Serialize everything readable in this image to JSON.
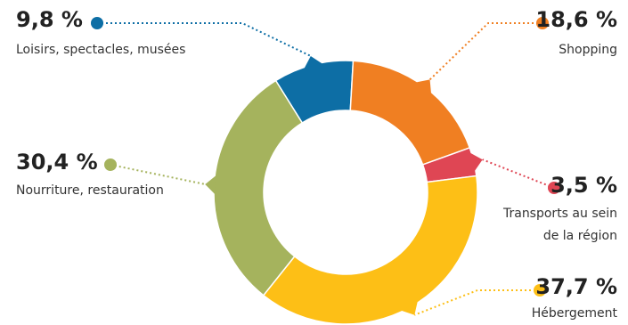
{
  "chart_data": {
    "type": "pie",
    "variant": "donut",
    "slices": [
      {
        "label": "Loisirs, spectacles, musées",
        "value": 9.8,
        "value_label": "9,8 %",
        "color": "#0d6ea5"
      },
      {
        "label": "Shopping",
        "value": 18.6,
        "value_label": "18,6 %",
        "color": "#f07f22"
      },
      {
        "label": "Transports au sein de la région",
        "label_lines": [
          "Transports au sein",
          "de la région"
        ],
        "value": 3.5,
        "value_label": "3,5 %",
        "color": "#df4654"
      },
      {
        "label": "Hébergement",
        "value": 37.7,
        "value_label": "37,7 %",
        "color": "#fdbf16"
      },
      {
        "label": "Nourriture, restauration",
        "value": 30.4,
        "value_label": "30,4 %",
        "color": "#a5b35d"
      }
    ]
  }
}
